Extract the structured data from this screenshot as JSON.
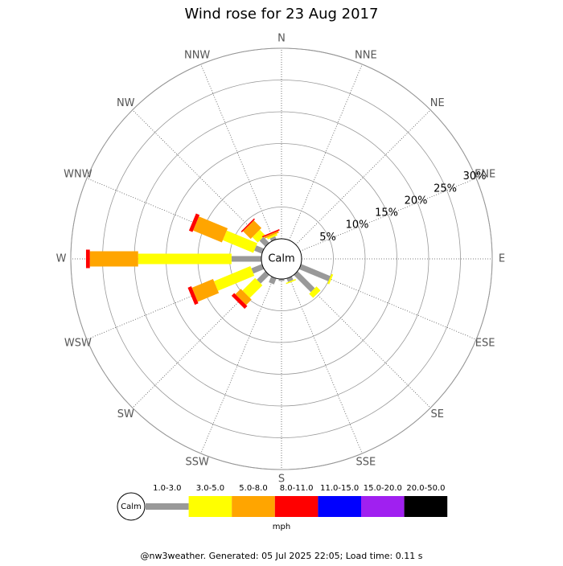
{
  "chart_data": {
    "type": "windrose",
    "title": "Wind rose for 23 Aug 2017",
    "directions": [
      "N",
      "NNE",
      "NE",
      "ENE",
      "E",
      "ESE",
      "SE",
      "SSE",
      "S",
      "SSW",
      "SW",
      "WSW",
      "W",
      "WNW",
      "NW",
      "NNW"
    ],
    "center_label": "Calm",
    "rlim": [
      0,
      30
    ],
    "rticks": [
      {
        "value": 5,
        "label": "5%"
      },
      {
        "value": 10,
        "label": "10%"
      },
      {
        "value": 15,
        "label": "15%"
      },
      {
        "value": 20,
        "label": "20%"
      },
      {
        "value": 25,
        "label": "25%"
      },
      {
        "value": 30,
        "label": "30%"
      }
    ],
    "series": [
      {
        "name": "1.0-3.0",
        "color": "#999999",
        "values": [
          0,
          0,
          0,
          0,
          0,
          5.0,
          3.8,
          0.6,
          0.3,
          1.0,
          1.9,
          1.8,
          4.7,
          1.3,
          1.3,
          0.5
        ]
      },
      {
        "name": "3.0-5.0",
        "color": "#ffff00",
        "values": [
          0,
          0,
          0,
          0,
          0,
          0.3,
          0.9,
          0.2,
          0,
          0,
          2.8,
          6.2,
          14.7,
          5.2,
          1.2,
          0.3
        ]
      },
      {
        "name": "5.0-8.0",
        "color": "#ffa500",
        "values": [
          0,
          0,
          0,
          0,
          0,
          0,
          0,
          0,
          0,
          0,
          1.2,
          3.6,
          7.6,
          4.9,
          1.7,
          0.3
        ]
      },
      {
        "name": "8.0-11.0",
        "color": "#ff0000",
        "values": [
          0,
          0,
          0,
          0,
          0,
          0,
          0,
          0,
          0,
          0,
          0.6,
          0.6,
          0.6,
          0.6,
          0.2,
          0.2
        ]
      },
      {
        "name": "11.0-15.0",
        "color": "#0000ff",
        "values": [
          0,
          0,
          0,
          0,
          0,
          0,
          0,
          0,
          0,
          0,
          0,
          0,
          0,
          0,
          0,
          0
        ]
      },
      {
        "name": "15.0-20.0",
        "color": "#a020f0",
        "values": [
          0,
          0,
          0,
          0,
          0,
          0,
          0,
          0,
          0,
          0,
          0,
          0,
          0,
          0,
          0,
          0
        ]
      },
      {
        "name": "20.0-50.0",
        "color": "#000000",
        "values": [
          0,
          0,
          0,
          0,
          0,
          0,
          0,
          0,
          0,
          0,
          0,
          0,
          0,
          0,
          0,
          0
        ]
      }
    ],
    "unit_label": "mph",
    "footer": "@nw3weather. Generated: 05 Jul 2025 22:05; Load time: 0.11 s"
  }
}
